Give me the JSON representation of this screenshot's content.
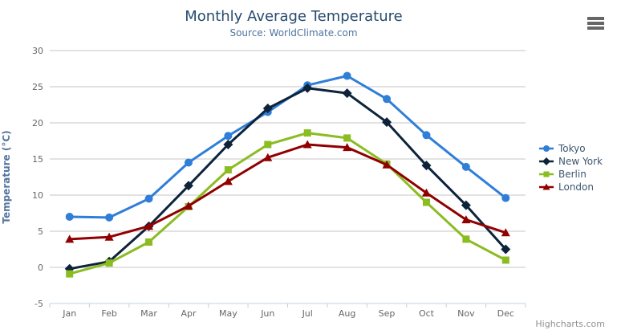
{
  "header": {
    "title": "Monthly Average Temperature",
    "subtitle": "Source: WorldClimate.com"
  },
  "credit": "Highcharts.com",
  "palette": {
    "title": "#274b6d",
    "subtitle": "#4d759e",
    "axis_label": "#666666",
    "axis_title": "#55749f",
    "axis_line": "#c0d0e0",
    "gridline": "#c6c6c6",
    "legend_text": "#3e576f",
    "menu_icon": "#666666",
    "credit": "#909090"
  },
  "chart_data": {
    "type": "line",
    "title": "Monthly Average Temperature",
    "subtitle": "Source: WorldClimate.com",
    "categories": [
      "Jan",
      "Feb",
      "Mar",
      "Apr",
      "May",
      "Jun",
      "Jul",
      "Aug",
      "Sep",
      "Oct",
      "Nov",
      "Dec"
    ],
    "series": [
      {
        "name": "Tokyo",
        "color": "#2f7ed8",
        "marker": "circle",
        "values": [
          7.0,
          6.9,
          9.5,
          14.5,
          18.2,
          21.5,
          25.2,
          26.5,
          23.3,
          18.3,
          13.9,
          9.6
        ]
      },
      {
        "name": "New York",
        "color": "#0d233a",
        "marker": "diamond",
        "values": [
          -0.2,
          0.8,
          5.7,
          11.3,
          17.0,
          22.0,
          24.8,
          24.1,
          20.1,
          14.1,
          8.6,
          2.5
        ]
      },
      {
        "name": "Berlin",
        "color": "#8bbc21",
        "marker": "square",
        "values": [
          -0.9,
          0.6,
          3.5,
          8.4,
          13.5,
          17.0,
          18.6,
          17.9,
          14.3,
          9.0,
          3.9,
          1.0
        ]
      },
      {
        "name": "London",
        "color": "#910000",
        "marker": "triangle",
        "values": [
          3.9,
          4.2,
          5.7,
          8.5,
          11.9,
          15.2,
          17.0,
          16.6,
          14.2,
          10.3,
          6.6,
          4.8
        ]
      }
    ],
    "xlabel": "",
    "ylabel": "Temperature (°C)",
    "ylim": [
      -5,
      30
    ],
    "ytick_step": 5,
    "yticks": [
      -5,
      0,
      5,
      10,
      15,
      20,
      25,
      30
    ],
    "grid": true,
    "legend_position": "right"
  }
}
